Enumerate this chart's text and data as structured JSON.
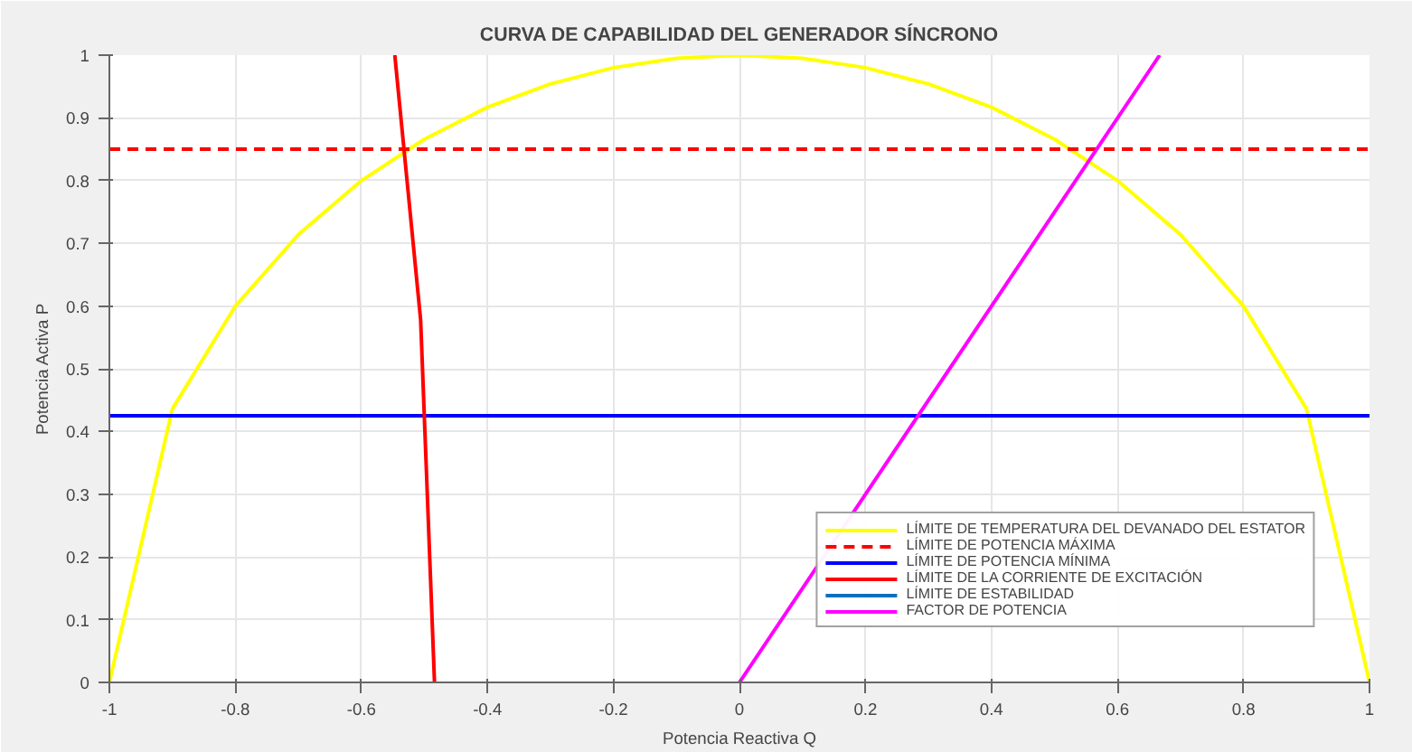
{
  "chart_data": {
    "type": "line",
    "title": "CURVA DE CAPABILIDAD DEL GENERADOR SÍNCRONO",
    "xlabel": "Potencia Reactiva Q",
    "ylabel": "Potencia Activa P",
    "series": [
      {
        "name": "LÍMITE DE TEMPERATURA DEL DEVANADO DEL ESTATOR",
        "color": "#ffff00",
        "x": [
          -1,
          -0.9,
          -0.8,
          -0.7,
          -0.6,
          -0.5,
          -0.4,
          -0.3,
          -0.2,
          -0.1,
          0,
          0.1,
          0.2,
          0.3,
          0.4,
          0.5,
          0.6,
          0.7,
          0.8,
          0.9,
          1
        ],
        "values": [
          0,
          0.436,
          0.6,
          0.714,
          0.8,
          0.866,
          0.917,
          0.954,
          0.98,
          0.995,
          1,
          0.995,
          0.98,
          0.954,
          0.917,
          0.866,
          0.8,
          0.714,
          0.6,
          0.436,
          0
        ]
      },
      {
        "name": "LÍMITE DE POTENCIA MÁXIMA",
        "color": "#ff0000",
        "line_style": "dashed",
        "x": [
          -1,
          1
        ],
        "values": [
          0.85,
          0.85
        ]
      },
      {
        "name": "LÍMITE DE POTENCIA MÍNIMA",
        "color": "#0000ff",
        "x": [
          -1,
          1
        ],
        "values": [
          0.425,
          0.425
        ]
      },
      {
        "name": "LÍMITE DE LA CORRIENTE DE EXCITACIÓN",
        "color": "#ff0000",
        "x": [
          -0.547,
          -0.506,
          -0.484
        ],
        "values": [
          1,
          0.578,
          0
        ]
      },
      {
        "name": "LÍMITE DE ESTABILIDAD",
        "color": "#0072bd"
      },
      {
        "name": "FACTOR DE POTENCIA",
        "color": "#ff00ff",
        "x": [
          0,
          0.667
        ],
        "values": [
          0,
          1
        ]
      }
    ],
    "xlim": [
      -1,
      1
    ],
    "ylim": [
      0,
      1
    ],
    "xticks": [
      -1,
      -0.8,
      -0.6,
      -0.4,
      -0.2,
      0,
      0.2,
      0.4,
      0.6,
      0.8,
      1
    ],
    "yticks": [
      0,
      0.1,
      0.2,
      0.3,
      0.4,
      0.5,
      0.6,
      0.7,
      0.8,
      0.9,
      1
    ],
    "grid": true,
    "legend": "bottom right",
    "line_style": "solid"
  }
}
